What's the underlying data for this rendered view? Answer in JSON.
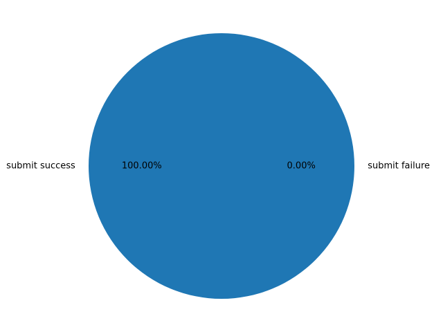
{
  "chart_data": {
    "type": "pie",
    "categories": [
      "submit success",
      "submit failure"
    ],
    "values": [
      100.0,
      0.0
    ],
    "percent_labels": [
      "100.00%",
      "0.00%"
    ],
    "colors": [
      "#1f77b4",
      "#ff7f0e"
    ],
    "start_angle_deg": 0,
    "direction": "counterclockwise"
  }
}
